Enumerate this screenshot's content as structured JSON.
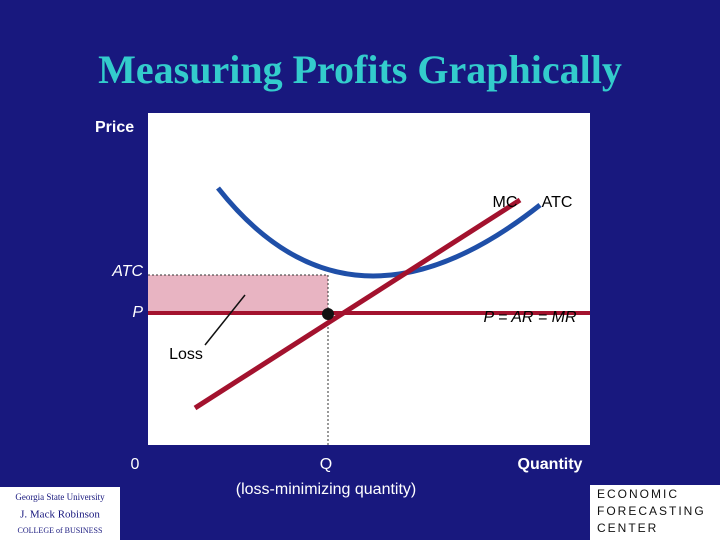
{
  "title": "Measuring Profits Graphically",
  "axes": {
    "y_label": "Price",
    "x_label": "Quantity",
    "origin": "0"
  },
  "curve_labels": {
    "mc": "MC",
    "atc": "ATC"
  },
  "price_labels": {
    "atc": "ATC",
    "p": "P"
  },
  "demand_label": "P = AR = MR",
  "loss_label": "Loss",
  "quantity": {
    "label": "Q",
    "note": "(loss-minimizing quantity)"
  },
  "logos": {
    "left": [
      "Georgia State University",
      "J. Mack Robinson",
      "COLLEGE of BUSINESS"
    ],
    "right": [
      "ECONOMIC",
      "FORECASTING",
      "CENTER"
    ]
  }
}
